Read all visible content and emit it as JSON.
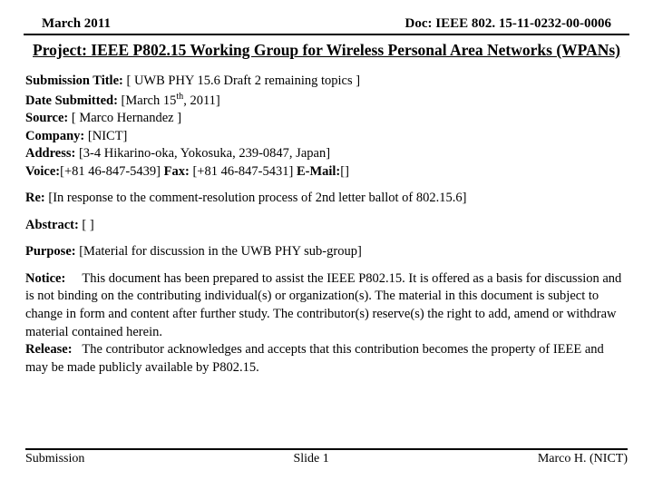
{
  "header": {
    "left": "March 2011",
    "right": "Doc: IEEE 802. 15-11-0232-00-0006"
  },
  "projectTitle": "Project: IEEE P802.15 Working Group for Wireless Personal Area Networks (WPANs)",
  "fields": {
    "submissionTitleLabel": "Submission Title:",
    "submissionTitle": " [ UWB PHY 15.6 Draft 2 remaining topics ]",
    "dateSubmittedLabel": "Date Submitted:",
    "dateSubmittedPrefix": " [March 15",
    "dateSubmittedSup": "th",
    "dateSubmittedSuffix": ", 2011]",
    "sourceLabel": "Source:",
    "source": " [ Marco Hernandez ]",
    "companyLabel": "Company:",
    "company": " [NICT]",
    "addressLabel": "Address:",
    "address": " [3-4 Hikarino-oka, Yokosuka, 239-0847, Japan]",
    "voiceLabel": "Voice:",
    "voice": "[+81 46-847-5439] ",
    "faxLabel": "Fax:",
    "fax": " [+81 46-847-5431] ",
    "emailLabel": "E-Mail:",
    "email": "[]",
    "reLabel": "Re:",
    "re": " [In response to the comment-resolution process of 2nd letter ballot of 802.15.6]",
    "abstractLabel": "Abstract:",
    "abstract": "   [ ]",
    "purposeLabel": "Purpose:",
    "purpose": "   [Material for discussion in the UWB PHY sub-group]",
    "noticeLabel": "Notice:",
    "notice": "     This document has been prepared to assist the IEEE P802.15.  It is offered as a basis for discussion and is not binding on the contributing individual(s) or organization(s). The material in this document is subject to change in form and content after further study. The contributor(s) reserve(s) the right to add, amend or withdraw material contained herein.",
    "releaseLabel": "Release:",
    "release": "   The contributor acknowledges and accepts that this contribution becomes the property of IEEE and may be made publicly available by P802.15."
  },
  "footer": {
    "left": "Submission",
    "center": "Slide 1",
    "right": "Marco H. (NICT)"
  },
  "colors": {
    "text": "#000000",
    "background": "#ffffff",
    "rule": "#000000"
  },
  "typography": {
    "family": "Times New Roman",
    "headerSize": 15,
    "titleSize": 17.5,
    "bodySize": 14.5,
    "footerSize": 14
  }
}
